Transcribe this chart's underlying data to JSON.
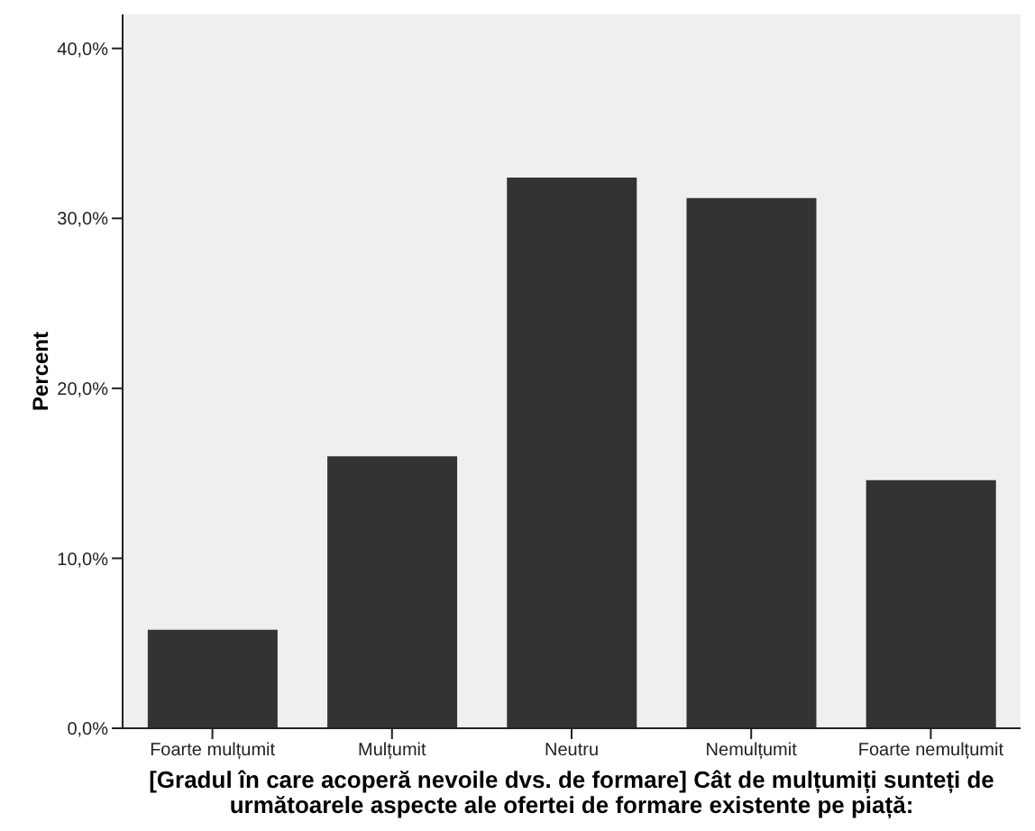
{
  "chart_data": {
    "type": "bar",
    "xlabel": "[Gradul în care acoperă nevoile dvs. de formare] Cât de mulțumiți sunteți de următoarele aspecte ale ofertei de formare existente pe piață:",
    "ylabel": "Percent",
    "categories": [
      "Foarte mulțumit",
      "Mulțumit",
      "Neutru",
      "Nemulțumit",
      "Foarte nemulțumit"
    ],
    "series": [
      {
        "color": "#333333",
        "values": [
          5.8,
          16.0,
          32.4,
          31.2,
          14.6
        ]
      }
    ],
    "ylim": [
      0,
      42
    ],
    "yticks": [
      {
        "value": 0,
        "label": "0,0%"
      },
      {
        "value": 10,
        "label": "10,0%"
      },
      {
        "value": 20,
        "label": "20,0%"
      },
      {
        "value": 30,
        "label": "30,0%"
      },
      {
        "value": 40,
        "label": "40,0%"
      }
    ],
    "grid": false,
    "legend": false
  }
}
